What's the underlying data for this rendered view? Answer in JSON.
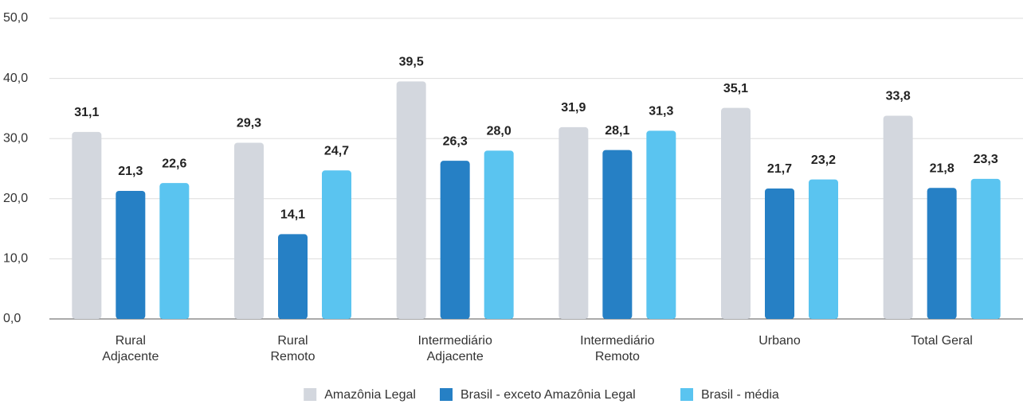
{
  "chart_data": {
    "type": "bar",
    "categories": [
      [
        "Rural",
        "Adjacente"
      ],
      [
        "Rural",
        "Remoto"
      ],
      [
        "Intermediário",
        "Adjacente"
      ],
      [
        "Intermediário",
        "Remoto"
      ],
      [
        "Urbano"
      ],
      [
        "Total Geral"
      ]
    ],
    "series": [
      {
        "name": "Amazônia Legal",
        "color": "#d3d7de",
        "values": [
          31.1,
          29.3,
          39.5,
          31.9,
          35.1,
          33.8
        ],
        "value_labels": [
          "31,1",
          "29,3",
          "39,5",
          "31,9",
          "35,1",
          "33,8"
        ]
      },
      {
        "name": "Brasil - exceto Amazônia Legal",
        "color": "#2680c5",
        "values": [
          21.3,
          14.1,
          26.3,
          28.1,
          21.7,
          21.8
        ],
        "value_labels": [
          "21,3",
          "14,1",
          "26,3",
          "28,1",
          "21,7",
          "21,8"
        ]
      },
      {
        "name": "Brasil - média",
        "color": "#5ac4f0",
        "values": [
          22.6,
          24.7,
          28.0,
          31.3,
          23.2,
          23.3
        ],
        "value_labels": [
          "22,6",
          "24,7",
          "28,0",
          "31,3",
          "23,2",
          "23,3"
        ]
      }
    ],
    "ylim": [
      0,
      50
    ],
    "yticks": [
      {
        "value": 0,
        "label": "0,0"
      },
      {
        "value": 10,
        "label": "10,0"
      },
      {
        "value": 20,
        "label": "20,0"
      },
      {
        "value": 30,
        "label": "30,0"
      },
      {
        "value": 40,
        "label": "40,0"
      },
      {
        "value": 50,
        "label": "50,0"
      }
    ],
    "grid": true,
    "legend": "bottom"
  }
}
